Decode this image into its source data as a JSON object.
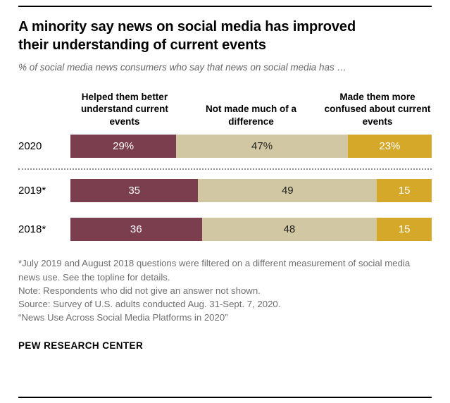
{
  "header": {
    "title": "A minority say news on social media has improved their understanding of current events",
    "subtitle": "% of social media news consumers who say that news on social media has …"
  },
  "chart_data": {
    "type": "bar",
    "variant": "horizontal-stacked",
    "unit": "percent",
    "categories": [
      "2020",
      "2019*",
      "2018*"
    ],
    "series": [
      {
        "name": "Helped them better understand events",
        "header_label": "Helped them better understand current events",
        "color": "#7b3e4f",
        "label_color": "#ffffff",
        "values": [
          29,
          35,
          36
        ]
      },
      {
        "name": "Not made much of a difference",
        "header_label": "Not made much of a difference",
        "color": "#d1c8a3",
        "label_color": "#222222",
        "values": [
          47,
          49,
          48
        ]
      },
      {
        "name": "Made them more confused about current events",
        "header_label": "Made them more confused about current events",
        "color": "#d6a829",
        "label_color": "#ffffff",
        "values": [
          23,
          15,
          15
        ]
      }
    ],
    "value_labels": [
      [
        "29%",
        "47%",
        "23%"
      ],
      [
        "35",
        "49",
        "15"
      ],
      [
        "36",
        "48",
        "15"
      ]
    ],
    "divider_after_row": 0,
    "legend_position": "column-headers",
    "grid": false,
    "xlim": [
      0,
      100
    ]
  },
  "notes": [
    "*July 2019 and August 2018 questions were filtered on a different measurement of social media news use. See the topline for details.",
    "Note: Respondents who did not give an answer not shown.",
    "Source: Survey of U.S. adults conducted Aug. 31-Sept. 7, 2020.",
    "“News Use Across Social Media Platforms in 2020”"
  ],
  "footer": {
    "brand": "PEW RESEARCH CENTER"
  }
}
